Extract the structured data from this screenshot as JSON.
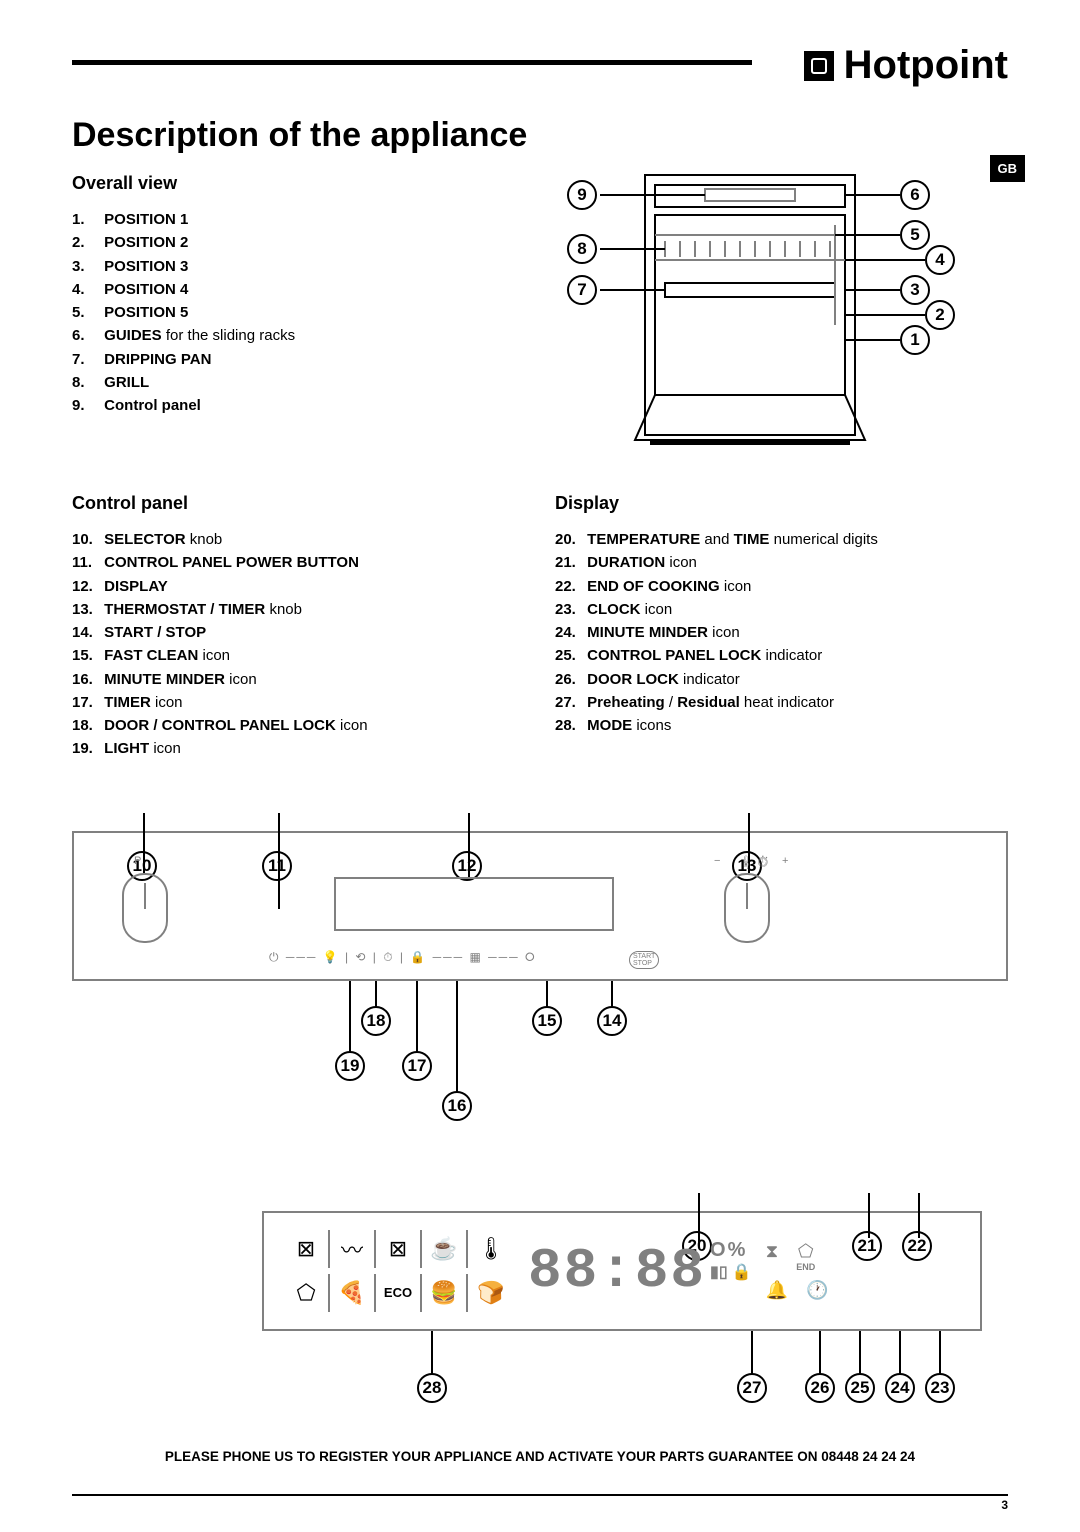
{
  "brand": "Hotpoint",
  "region_badge": "GB",
  "page_title": "Description of the appliance",
  "page_number": "3",
  "footer": "PLEASE PHONE US TO REGISTER YOUR APPLIANCE AND ACTIVATE YOUR PARTS GUARANTEE ON 08448 24 24 24",
  "sections": {
    "overall": {
      "heading": "Overall view",
      "items": [
        {
          "n": "1.",
          "bold": "POSITION 1",
          "plain": ""
        },
        {
          "n": "2.",
          "bold": "POSITION 2",
          "plain": ""
        },
        {
          "n": "3.",
          "bold": "POSITION 3",
          "plain": ""
        },
        {
          "n": "4.",
          "bold": "POSITION 4",
          "plain": ""
        },
        {
          "n": "5.",
          "bold": "POSITION 5",
          "plain": ""
        },
        {
          "n": "6.",
          "bold": "GUIDES",
          "plain": " for the sliding racks"
        },
        {
          "n": "7.",
          "bold": "DRIPPING PAN",
          "plain": ""
        },
        {
          "n": "8.",
          "bold": "GRILL",
          "plain": ""
        },
        {
          "n": "9.",
          "bold": "Control panel",
          "plain": ""
        }
      ],
      "diagram_labels": {
        "left": [
          "9",
          "8",
          "7"
        ],
        "right": [
          "6",
          "5",
          "4",
          "3",
          "2",
          "1"
        ]
      }
    },
    "control_panel": {
      "heading": "Control panel",
      "items": [
        {
          "n": "10.",
          "bold": "SELECTOR",
          "plain": " knob"
        },
        {
          "n": "11.",
          "bold": "CONTROL PANEL POWER BUTTON",
          "plain": ""
        },
        {
          "n": "12.",
          "bold": "DISPLAY",
          "plain": ""
        },
        {
          "n": "13.",
          "bold": "THERMOSTAT / TIMER",
          "plain": " knob"
        },
        {
          "n": "14.",
          "bold": "START / STOP",
          "plain": ""
        },
        {
          "n": "15.",
          "bold": "FAST CLEAN",
          "plain": " icon"
        },
        {
          "n": "16.",
          "bold": "MINUTE MINDER",
          "plain": " icon"
        },
        {
          "n": "17.",
          "bold": "TIMER",
          "plain": " icon"
        },
        {
          "n": "18.",
          "bold": "DOOR / CONTROL PANEL LOCK",
          "plain": " icon"
        },
        {
          "n": "19.",
          "bold": "LIGHT",
          "plain": " icon"
        }
      ],
      "diagram_labels": {
        "top": [
          "10",
          "11",
          "12",
          "13"
        ],
        "bottom": [
          "18",
          "19",
          "17",
          "16",
          "15",
          "14"
        ]
      }
    },
    "display": {
      "heading": "Display",
      "items": [
        {
          "n": "20.",
          "bold": "TEMPERATURE",
          "plain": " and ",
          "bold2": "TIME",
          "plain2": " numerical digits"
        },
        {
          "n": "21.",
          "bold": "DURATION",
          "plain": "  icon"
        },
        {
          "n": "22.",
          "bold": "END OF COOKING",
          "plain": " icon"
        },
        {
          "n": "23.",
          "bold": "CLOCK",
          "plain": " icon"
        },
        {
          "n": "24.",
          "bold": "MINUTE MINDER",
          "plain": " icon"
        },
        {
          "n": "25.",
          "bold": "CONTROL PANEL LOCK",
          "plain": " indicator"
        },
        {
          "n": "26.",
          "bold": "DOOR LOCK",
          "plain": " indicator"
        },
        {
          "n": "27.",
          "bold": "Preheating",
          "plain": " / ",
          "bold2": "Residual",
          "plain2": " heat indicator"
        },
        {
          "n": "28.",
          "bold": "MODE",
          "plain": " icons"
        }
      ],
      "digits": "88:88",
      "degree": "O",
      "percent": "%",
      "end_label": "END",
      "eco_label": "ECO",
      "diagram_labels": {
        "top": [
          "20",
          "21",
          "22"
        ],
        "bottom": [
          "28",
          "27",
          "26",
          "25",
          "24",
          "23"
        ]
      }
    }
  },
  "colors": {
    "line": "#000000",
    "grey": "#808080",
    "bg": "#ffffff"
  }
}
